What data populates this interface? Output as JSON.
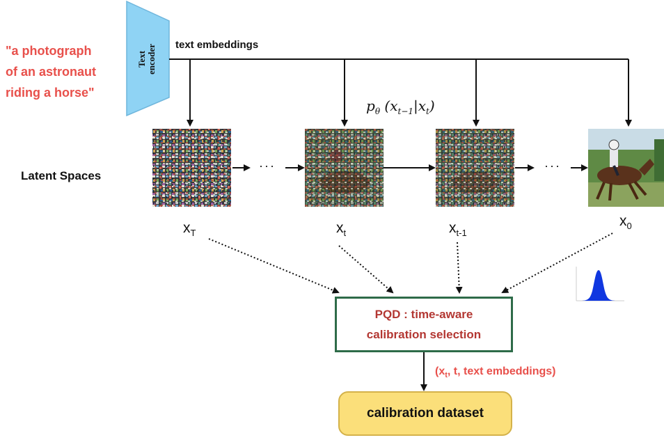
{
  "prompt": {
    "line1": "\"a photograph",
    "line2": "of an astronaut",
    "line3": "riding a horse\""
  },
  "encoder": {
    "line1": "Text",
    "line2": "encoder"
  },
  "embeddings_label": "text embeddings",
  "latent_spaces_label": "Latent Spaces",
  "formula": {
    "p": "p",
    "theta": "θ",
    "x1": "x",
    "sub1": "t−1",
    "x2": "x",
    "sub2": "t"
  },
  "steps": [
    {
      "var": "x",
      "sub": "T"
    },
    {
      "var": "x",
      "sub": "t"
    },
    {
      "var": "x",
      "sub": "t-1"
    },
    {
      "var": "x",
      "sub": "0"
    }
  ],
  "ellipsis": "···",
  "pqd": {
    "line1": "PQD : time-aware",
    "line2": "calibration selection"
  },
  "tuple": {
    "open": "(x",
    "sub": "t",
    "rest": ", t, text embeddings)"
  },
  "calibration_dataset": "calibration dataset",
  "colors": {
    "prompt_red": "#e8504b",
    "pqd_text": "#b33732",
    "pqd_border": "#2e6b49",
    "encoder_fill": "#8fd3f4",
    "dataset_fill": "#fbdf7a",
    "gaussian_blue": "#1037e0"
  }
}
